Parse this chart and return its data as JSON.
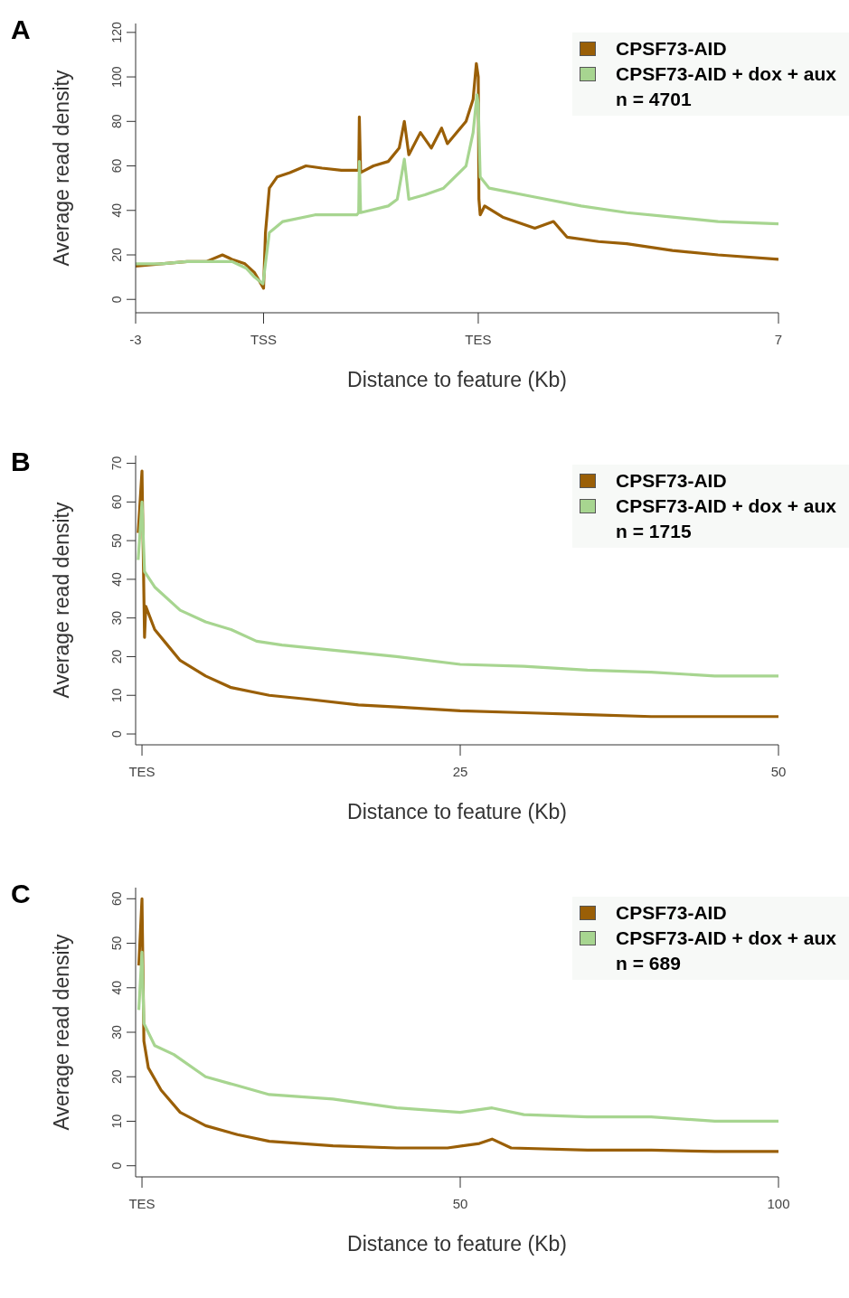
{
  "chart_data": [
    {
      "type": "line",
      "title": "A",
      "xlabel": "Distance to feature (Kb)",
      "ylabel": "Average read density",
      "xlim": [
        -3,
        7
      ],
      "xticks": [
        -3,
        {
          "value": -1.01,
          "label": "TSS"
        },
        {
          "value": 2.33,
          "label": "TES"
        },
        7
      ],
      "ylim": [
        -6,
        124
      ],
      "yticks": [
        0,
        20,
        40,
        60,
        80,
        100,
        120
      ],
      "legend": "top right",
      "annotations": [
        "n = 4701"
      ],
      "series": [
        {
          "name": "CPSF73-AID",
          "color": "#9a5f07",
          "x": [
            -3,
            -2.6,
            -2.2,
            -1.9,
            -1.65,
            -1.5,
            -1.3,
            -1.15,
            -1.01,
            -0.98,
            -0.92,
            -0.8,
            -0.6,
            -0.35,
            -0.1,
            0.2,
            0.36,
            0.47,
            0.48,
            0.5,
            0.7,
            0.93,
            1.1,
            1.18,
            1.25,
            1.43,
            1.6,
            1.76,
            1.85,
            2.14,
            2.25,
            2.3,
            2.33,
            2.34,
            2.36,
            2.43,
            2.71,
            3.21,
            3.5,
            3.71,
            4.2,
            4.64,
            5.35,
            6.06,
            7
          ],
          "values": [
            15,
            16,
            17,
            17,
            20,
            18,
            16,
            12,
            5,
            30,
            50,
            55,
            57,
            60,
            59,
            58,
            58,
            58,
            82,
            57,
            60,
            62,
            68,
            80,
            65,
            75,
            68,
            77,
            70,
            80,
            90,
            106,
            100,
            45,
            38,
            42,
            37,
            32,
            35,
            28,
            26,
            25,
            22,
            20,
            18
          ]
        },
        {
          "name": "CPSF73-AID + dox + aux",
          "color": "#a7d590",
          "x": [
            -3,
            -2.6,
            -2.2,
            -1.9,
            -1.5,
            -1.28,
            -1.15,
            -1.02,
            -0.92,
            -0.71,
            -0.21,
            0.2,
            0.44,
            0.47,
            0.48,
            0.5,
            0.93,
            1.07,
            1.18,
            1.25,
            1.5,
            1.79,
            2.14,
            2.25,
            2.31,
            2.33,
            2.36,
            2.5,
            3.21,
            3.93,
            4.64,
            5.35,
            6.06,
            7
          ],
          "values": [
            16,
            16,
            17,
            17,
            17,
            14,
            10,
            7,
            30,
            35,
            38,
            38,
            38,
            39,
            62,
            39,
            42,
            45,
            63,
            45,
            47,
            50,
            60,
            75,
            92,
            88,
            55,
            50,
            46,
            42,
            39,
            37,
            35,
            34
          ]
        }
      ]
    },
    {
      "type": "line",
      "title": "B",
      "xlabel": "Distance to feature (Kb)",
      "ylabel": "Average read density",
      "xlim": [
        -0.5,
        50
      ],
      "xticks": [
        {
          "value": 0,
          "label": "TES"
        },
        25,
        50
      ],
      "ylim": [
        -2.8,
        72
      ],
      "yticks": [
        0,
        10,
        20,
        30,
        40,
        50,
        60,
        70
      ],
      "legend": "top right",
      "annotations": [
        "n = 1715"
      ],
      "series": [
        {
          "name": "CPSF73-AID",
          "color": "#9a5f07",
          "x": [
            -0.3,
            0,
            0.2,
            0.3,
            1,
            2,
            3,
            5,
            7,
            10,
            13,
            17,
            20,
            25,
            30,
            35,
            40,
            45,
            50
          ],
          "values": [
            52,
            68,
            25,
            33,
            27,
            23,
            19,
            15,
            12,
            10,
            9,
            7.5,
            7,
            6,
            5.5,
            5,
            4.5,
            4.5,
            4.5
          ]
        },
        {
          "name": "CPSF73-AID + dox + aux",
          "color": "#a7d590",
          "x": [
            -0.3,
            0,
            0.2,
            1,
            3,
            5,
            7,
            9,
            11,
            14,
            17,
            20,
            25,
            30,
            35,
            40,
            45,
            50
          ],
          "values": [
            45,
            60,
            42,
            38,
            32,
            29,
            27,
            24,
            23,
            22,
            21,
            20,
            18,
            17.5,
            16.5,
            16,
            15,
            15
          ]
        }
      ]
    },
    {
      "type": "line",
      "title": "C",
      "xlabel": "Distance to feature (Kb)",
      "ylabel": "Average read density",
      "xlim": [
        -1,
        100
      ],
      "xticks": [
        {
          "value": 0,
          "label": "TES"
        },
        50,
        100
      ],
      "ylim": [
        -2.5,
        62.5
      ],
      "yticks": [
        0,
        10,
        20,
        30,
        40,
        50,
        60
      ],
      "legend": "top right",
      "annotations": [
        "n = 689"
      ],
      "series": [
        {
          "name": "CPSF73-AID",
          "color": "#9a5f07",
          "x": [
            -0.5,
            0,
            0.3,
            1,
            3,
            6,
            10,
            15,
            20,
            30,
            40,
            48,
            53,
            55,
            58,
            70,
            80,
            90,
            100
          ],
          "values": [
            45,
            60,
            28,
            22,
            17,
            12,
            9,
            7,
            5.5,
            4.5,
            4,
            4,
            5,
            6,
            4,
            3.5,
            3.5,
            3.2,
            3.2
          ]
        },
        {
          "name": "CPSF73-AID + dox + aux",
          "color": "#a7d590",
          "x": [
            -0.5,
            0,
            0.3,
            2,
            5,
            10,
            15,
            20,
            30,
            40,
            50,
            55,
            60,
            70,
            80,
            90,
            100
          ],
          "values": [
            35,
            48,
            32,
            27,
            25,
            20,
            18,
            16,
            15,
            13,
            12,
            13,
            11.5,
            11,
            11,
            10,
            10
          ]
        }
      ]
    }
  ]
}
